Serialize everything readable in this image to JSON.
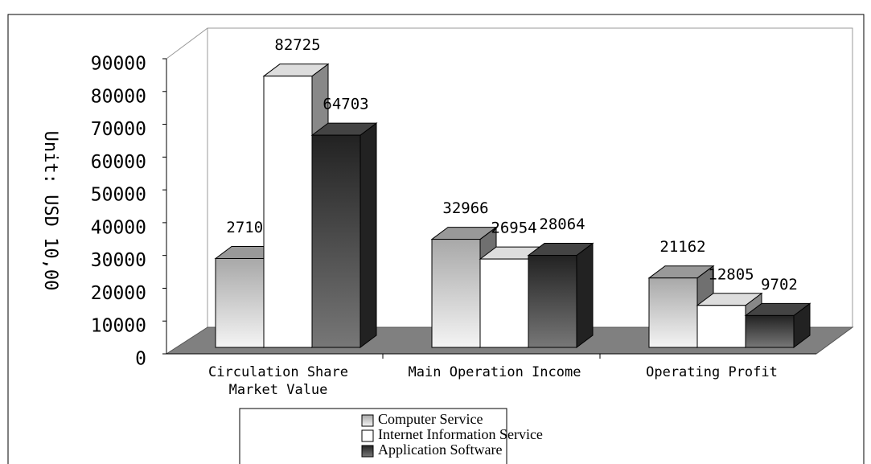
{
  "chart_data": {
    "type": "bar3d",
    "y_label": "Unit: USD 10,00",
    "categories": [
      "Circulation Share\nMarket Value",
      "Main Operation Income",
      "Operating Profit"
    ],
    "series": [
      {
        "name": "Computer Service",
        "color": "#c0c0c0",
        "values": [
          27104,
          32966,
          21162
        ]
      },
      {
        "name": "Internet Information Service",
        "color": "#ffffff",
        "values": [
          82725,
          26954,
          12805
        ]
      },
      {
        "name": "Application Software",
        "color": "#333333",
        "values": [
          64703,
          28064,
          9702
        ]
      }
    ],
    "ylim": [
      0,
      90000
    ],
    "yticks": [
      0,
      10000,
      20000,
      30000,
      40000,
      50000,
      60000,
      70000,
      80000,
      90000
    ]
  }
}
